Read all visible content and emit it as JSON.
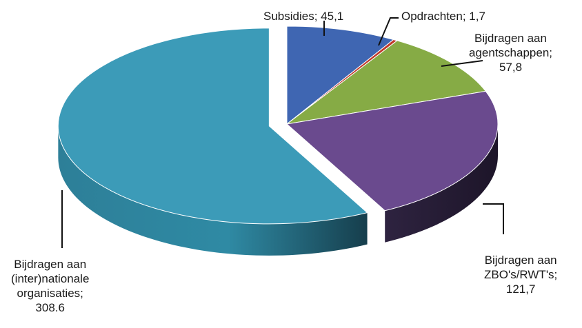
{
  "chart_data": {
    "type": "pie",
    "style": "3d-exploded",
    "slices": [
      {
        "key": "subsidies",
        "lines": [
          "Subsidies; 45,1"
        ],
        "value": 45.1,
        "color": "#3f66b2"
      },
      {
        "key": "opdrachten",
        "lines": [
          "Opdrachten; 1,7"
        ],
        "value": 1.7,
        "color": "#c0392b"
      },
      {
        "key": "agentschappen",
        "lines": [
          "Bijdragen aan",
          "agentschappen;",
          "57,8"
        ],
        "value": 57.8,
        "color": "#86ab45"
      },
      {
        "key": "zbo",
        "lines": [
          "Bijdragen aan",
          "ZBO's/RWT's;",
          "121,7"
        ],
        "value": 121.7,
        "color": "#6a4a8e"
      },
      {
        "key": "internationale",
        "lines": [
          "Bijdragen aan",
          "(inter)nationale",
          "organisaties;",
          "308.6"
        ],
        "value": 308.6,
        "color": "#3c9bb8"
      }
    ]
  }
}
